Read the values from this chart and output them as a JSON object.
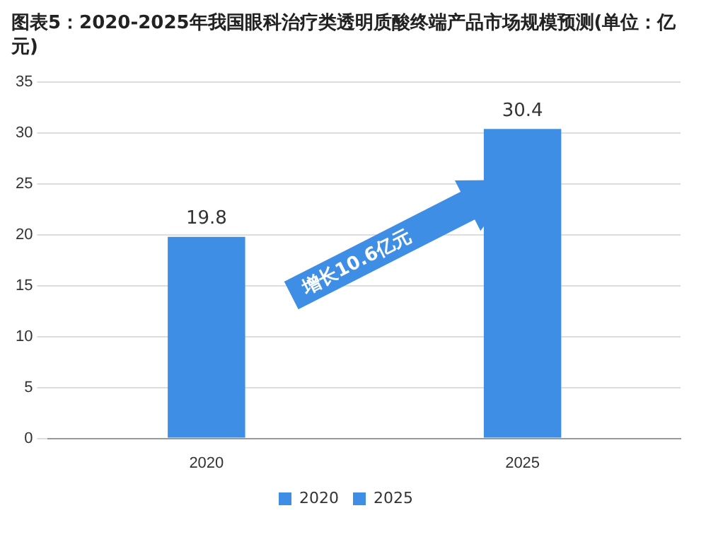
{
  "chart_data": {
    "type": "bar",
    "title": "图表5：2020-2025年我国眼科治疗类透明质酸终端产品市场规模预测(单位：亿元)",
    "categories": [
      "2020",
      "2025"
    ],
    "series": [
      {
        "name": "2020",
        "color": "#3f8ee6",
        "values": [
          19.8,
          null
        ]
      },
      {
        "name": "2025",
        "color": "#3f8ee6",
        "values": [
          null,
          30.4
        ]
      }
    ],
    "ylim": [
      0,
      35
    ],
    "yticks": [
      0,
      5,
      10,
      15,
      20,
      25,
      30,
      35
    ],
    "grid": "y",
    "legend": "bottom",
    "data_labels": true,
    "annotations": [
      "增长10.6亿元"
    ]
  }
}
